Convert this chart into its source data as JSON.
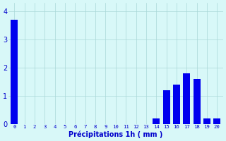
{
  "values": [
    3.7,
    0,
    0,
    0,
    0,
    0,
    0,
    0,
    0,
    0,
    0,
    0,
    0,
    0,
    0.2,
    1.2,
    1.4,
    1.8,
    1.6,
    0.2,
    0.2
  ],
  "bar_color": "#0000ee",
  "background_color": "#d8f8f8",
  "grid_color": "#aad8d8",
  "xlabel": "Précipitations 1h ( mm )",
  "xlabel_color": "#0000cc",
  "tick_color": "#0000cc",
  "ylim": [
    0,
    4.3
  ],
  "yticks": [
    0,
    1,
    2,
    3,
    4
  ],
  "n_bars": 21,
  "figsize": [
    3.2,
    2.0
  ],
  "dpi": 100
}
